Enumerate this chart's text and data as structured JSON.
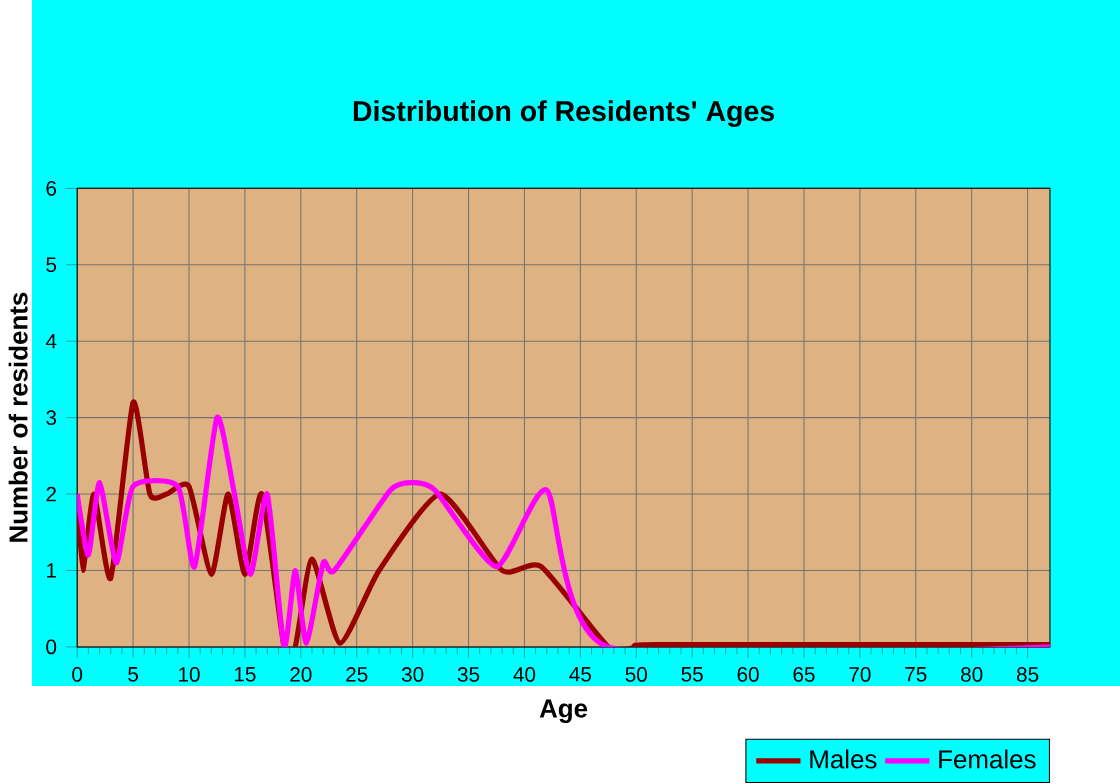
{
  "chart_data": {
    "type": "line",
    "title": "Distribution of Residents' Ages",
    "xlabel": "Age",
    "ylabel": "Number of residents",
    "xlim": [
      0,
      87
    ],
    "xticks": [
      0,
      5,
      10,
      15,
      20,
      25,
      30,
      35,
      40,
      45,
      50,
      55,
      60,
      65,
      70,
      75,
      80,
      85
    ],
    "ylim": [
      0,
      6
    ],
    "yticks": [
      0,
      1,
      2,
      3,
      4,
      5,
      6
    ],
    "grid": true,
    "legend": "bottom right",
    "marker": "none",
    "line_style": "solid",
    "series": [
      {
        "name": "Males",
        "color": "#990000",
        "x": [
          0,
          0.5,
          1.5,
          3,
          5,
          6.5,
          8,
          10,
          12,
          13.5,
          15,
          16.5,
          18.5,
          19.5,
          21,
          23.5,
          27,
          32.5,
          38,
          41.5,
          47.5,
          50,
          52,
          87
        ],
        "values": [
          2,
          1,
          2,
          0.9,
          3.2,
          2,
          2,
          2.1,
          0.95,
          2,
          0.95,
          2,
          0,
          0,
          1.15,
          0.05,
          1,
          2,
          1,
          1.05,
          0,
          0,
          0.03,
          0.03
        ]
      },
      {
        "name": "Females",
        "color": "#ff00ff",
        "x": [
          0,
          1,
          2,
          3.5,
          5,
          9,
          10.5,
          12.5,
          14,
          15.5,
          17,
          18.5,
          19.5,
          20.5,
          22,
          23,
          28,
          30,
          32,
          37.5,
          42,
          47.5,
          87
        ],
        "values": [
          2,
          1.2,
          2.15,
          1.1,
          2.1,
          2.1,
          1.05,
          3,
          2.05,
          0.95,
          2,
          0,
          1,
          0.05,
          1.1,
          1,
          2.05,
          2.15,
          2.05,
          1.05,
          2.05,
          0,
          0
        ]
      }
    ]
  }
}
